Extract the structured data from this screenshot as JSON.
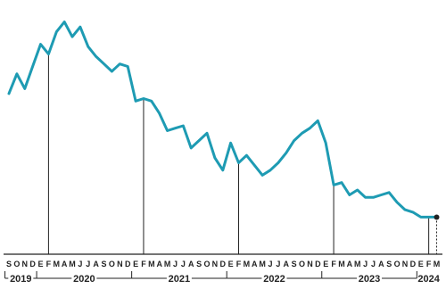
{
  "chart_data": {
    "type": "line",
    "title": "",
    "xlabel": "",
    "ylabel": "",
    "grid": false,
    "legend": "none",
    "series_color": "#1e9bb3",
    "axis_color": "#222222",
    "end_marker_color": "#222222",
    "x": [
      "2019-09",
      "2019-10",
      "2019-11",
      "2019-12",
      "2020-01",
      "2020-02",
      "2020-03",
      "2020-04",
      "2020-05",
      "2020-06",
      "2020-07",
      "2020-08",
      "2020-09",
      "2020-10",
      "2020-11",
      "2020-12",
      "2021-01",
      "2021-02",
      "2021-03",
      "2021-04",
      "2021-05",
      "2021-06",
      "2021-07",
      "2021-08",
      "2021-09",
      "2021-10",
      "2021-11",
      "2021-12",
      "2022-01",
      "2022-02",
      "2022-03",
      "2022-04",
      "2022-05",
      "2022-06",
      "2022-07",
      "2022-08",
      "2022-09",
      "2022-10",
      "2022-11",
      "2022-12",
      "2023-01",
      "2023-02",
      "2023-03",
      "2023-04",
      "2023-05",
      "2023-06",
      "2023-07",
      "2023-08",
      "2023-09",
      "2023-10",
      "2023-11",
      "2023-12",
      "2024-01",
      "2024-02",
      "2024-03"
    ],
    "values": [
      65,
      73,
      67,
      76,
      85,
      81,
      90,
      94,
      88,
      92,
      84,
      80,
      77,
      74,
      77,
      76,
      62,
      63,
      62,
      57,
      50,
      51,
      52,
      43,
      46,
      49,
      39,
      34,
      45,
      37,
      40,
      36,
      32,
      34,
      37,
      41,
      46,
      49,
      51,
      54,
      45,
      28,
      29,
      24,
      26,
      23,
      23,
      24,
      25,
      21,
      18,
      17,
      15,
      15,
      15
    ],
    "ylim": [
      0,
      100
    ],
    "months_axis": [
      "S",
      "O",
      "N",
      "D",
      "E",
      "F",
      "M",
      "A",
      "M",
      "J",
      "J",
      "A",
      "S",
      "O",
      "N",
      "D",
      "E",
      "F",
      "M",
      "A",
      "M",
      "J",
      "J",
      "A",
      "S",
      "O",
      "N",
      "D",
      "E",
      "F",
      "M",
      "A",
      "M",
      "J",
      "J",
      "A",
      "S",
      "O",
      "N",
      "D",
      "E",
      "F",
      "M",
      "A",
      "M",
      "J",
      "J",
      "A",
      "S",
      "O",
      "N",
      "D",
      "E",
      "F",
      "M"
    ],
    "years": [
      {
        "label": "2019",
        "start_index": 0,
        "end_index": 3
      },
      {
        "label": "2020",
        "start_index": 4,
        "end_index": 15
      },
      {
        "label": "2021",
        "start_index": 16,
        "end_index": 27
      },
      {
        "label": "2022",
        "start_index": 28,
        "end_index": 39
      },
      {
        "label": "2023",
        "start_index": 40,
        "end_index": 51
      },
      {
        "label": "2024",
        "start_index": 52,
        "end_index": 54
      }
    ],
    "february_markers": [
      5,
      17,
      29,
      41,
      53
    ]
  }
}
